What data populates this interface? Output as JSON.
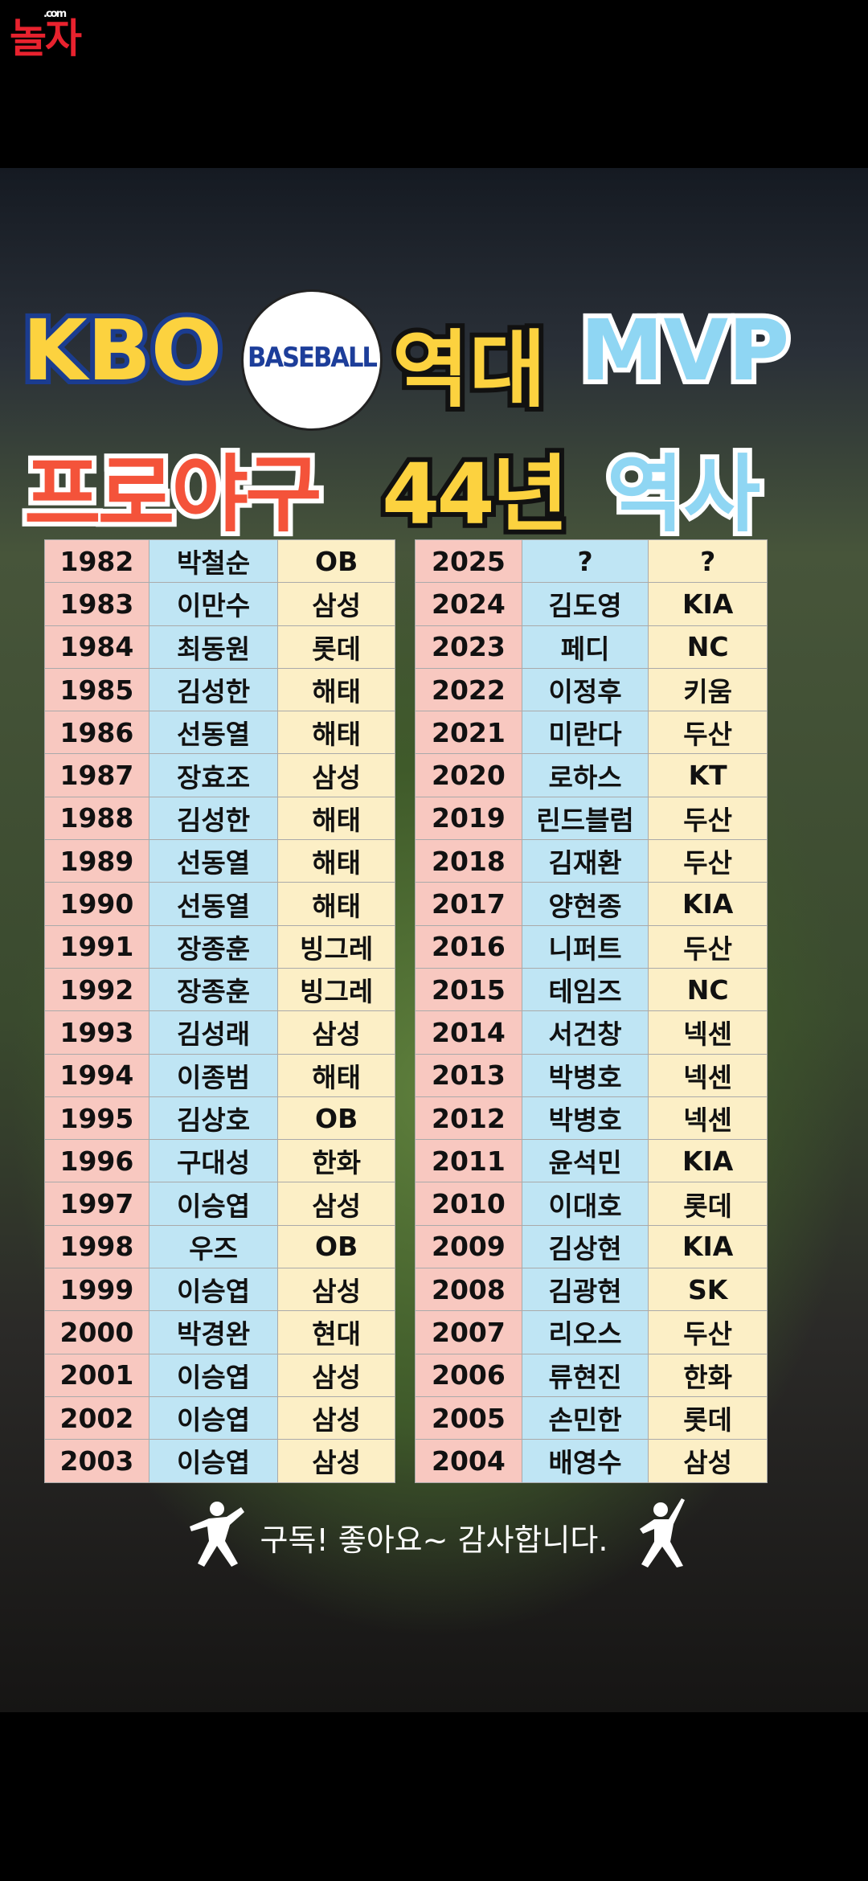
{
  "logo": {
    "text": "놀자",
    "sub": ".com"
  },
  "title": {
    "line1": [
      "KBO",
      "BASEBALL",
      "역대",
      "MVP"
    ],
    "line2": [
      "프로야구",
      "44년",
      "역사"
    ]
  },
  "table": {
    "left": [
      [
        1982,
        "박철순",
        "OB"
      ],
      [
        1983,
        "이만수",
        "삼성"
      ],
      [
        1984,
        "최동원",
        "롯데"
      ],
      [
        1985,
        "김성한",
        "해태"
      ],
      [
        1986,
        "선동열",
        "해태"
      ],
      [
        1987,
        "장효조",
        "삼성"
      ],
      [
        1988,
        "김성한",
        "해태"
      ],
      [
        1989,
        "선동열",
        "해태"
      ],
      [
        1990,
        "선동열",
        "해태"
      ],
      [
        1991,
        "장종훈",
        "빙그레"
      ],
      [
        1992,
        "장종훈",
        "빙그레"
      ],
      [
        1993,
        "김성래",
        "삼성"
      ],
      [
        1994,
        "이종범",
        "해태"
      ],
      [
        1995,
        "김상호",
        "OB"
      ],
      [
        1996,
        "구대성",
        "한화"
      ],
      [
        1997,
        "이승엽",
        "삼성"
      ],
      [
        1998,
        "우즈",
        "OB"
      ],
      [
        1999,
        "이승엽",
        "삼성"
      ],
      [
        2000,
        "박경완",
        "현대"
      ],
      [
        2001,
        "이승엽",
        "삼성"
      ],
      [
        2002,
        "이승엽",
        "삼성"
      ],
      [
        2003,
        "이승엽",
        "삼성"
      ]
    ],
    "right": [
      [
        2025,
        "?",
        "?"
      ],
      [
        2024,
        "김도영",
        "KIA"
      ],
      [
        2023,
        "페디",
        "NC"
      ],
      [
        2022,
        "이정후",
        "키움"
      ],
      [
        2021,
        "미란다",
        "두산"
      ],
      [
        2020,
        "로하스",
        "KT"
      ],
      [
        2019,
        "린드블럼",
        "두산"
      ],
      [
        2018,
        "김재환",
        "두산"
      ],
      [
        2017,
        "양현종",
        "KIA"
      ],
      [
        2016,
        "니퍼트",
        "두산"
      ],
      [
        2015,
        "테임즈",
        "NC"
      ],
      [
        2014,
        "서건창",
        "넥센"
      ],
      [
        2013,
        "박병호",
        "넥센"
      ],
      [
        2012,
        "박병호",
        "넥센"
      ],
      [
        2011,
        "윤석민",
        "KIA"
      ],
      [
        2010,
        "이대호",
        "롯데"
      ],
      [
        2009,
        "김상현",
        "KIA"
      ],
      [
        2008,
        "김광현",
        "SK"
      ],
      [
        2007,
        "리오스",
        "두산"
      ],
      [
        2006,
        "류현진",
        "한화"
      ],
      [
        2005,
        "손민한",
        "롯데"
      ],
      [
        2004,
        "배영수",
        "삼성"
      ]
    ]
  },
  "footer": "구독! 좋아요~ 감사합니다."
}
